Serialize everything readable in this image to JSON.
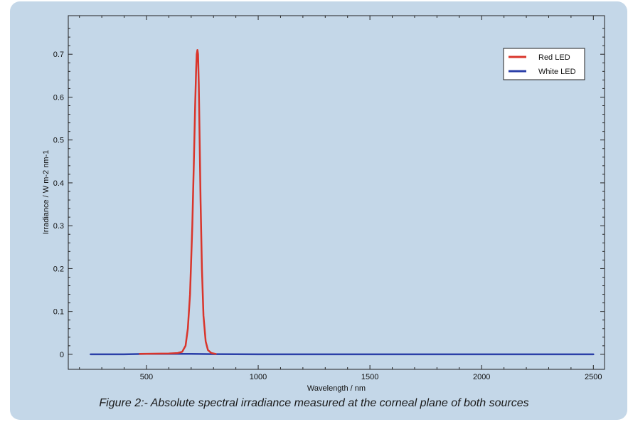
{
  "caption": "Figure 2:- Absolute spectral irradiance measured at the corneal plane of both sources",
  "colors": {
    "panel": "#c4d7e8",
    "red_led": "#d9352b",
    "white_led": "#2b3fa8"
  },
  "chart_data": {
    "type": "line",
    "xlabel": "Wavelength / nm",
    "ylabel": "Irradiance / W m-2 nm-1",
    "xlim": [
      150,
      2550
    ],
    "ylim": [
      -0.035,
      0.79
    ],
    "x_ticks": [
      500,
      1000,
      1500,
      2000,
      2500
    ],
    "x_tick_labels": [
      "500",
      "1000",
      "1500",
      "2000",
      "2500"
    ],
    "y_ticks": [
      0,
      0.1,
      0.2,
      0.3,
      0.4,
      0.5,
      0.6,
      0.7
    ],
    "y_tick_labels": [
      "0",
      "0.1",
      "0.2",
      "0.3",
      "0.4",
      "0.5",
      "0.6",
      "0.7"
    ],
    "grid": false,
    "legend_position": "top-right",
    "series": [
      {
        "name": "Red LED",
        "color": "#d9352b",
        "x": [
          470,
          600,
          640,
          660,
          675,
          685,
          695,
          705,
          712,
          718,
          722,
          725,
          728,
          731,
          734,
          738,
          742,
          748,
          755,
          765,
          775,
          790,
          810
        ],
        "y": [
          0.001,
          0.002,
          0.003,
          0.006,
          0.02,
          0.06,
          0.14,
          0.3,
          0.45,
          0.58,
          0.66,
          0.7,
          0.71,
          0.7,
          0.63,
          0.5,
          0.36,
          0.2,
          0.09,
          0.03,
          0.01,
          0.003,
          0.001
        ]
      },
      {
        "name": "White LED",
        "color": "#2b3fa8",
        "x": [
          250,
          400,
          500,
          600,
          700,
          800,
          1000,
          1500,
          2000,
          2500
        ],
        "y": [
          0.0,
          0.0,
          0.001,
          0.001,
          0.001,
          0.0005,
          0.0,
          0.0,
          0.0,
          0.0
        ]
      }
    ]
  }
}
